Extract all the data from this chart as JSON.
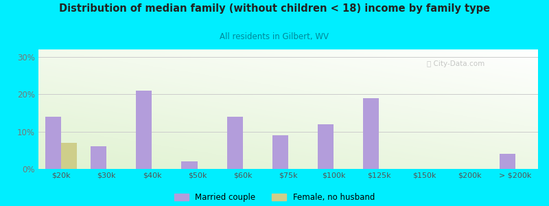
{
  "title": "Distribution of median family (without children < 18) income by family type",
  "subtitle": "All residents in Gilbert, WV",
  "categories": [
    "$20k",
    "$30k",
    "$40k",
    "$50k",
    "$60k",
    "$75k",
    "$100k",
    "$125k",
    "$150k",
    "$200k",
    "> $200k"
  ],
  "married_couple": [
    14,
    6,
    21,
    2,
    14,
    9,
    12,
    19,
    0,
    0,
    4
  ],
  "female_no_husband": [
    7,
    0,
    0,
    0,
    0,
    0,
    0,
    0,
    0,
    0,
    0
  ],
  "married_color": "#b39ddb",
  "female_color": "#cece8a",
  "background_outer": "#00eeff",
  "title_color": "#222222",
  "subtitle_color": "#008899",
  "ylabel_color": "#777777",
  "xlabel_color": "#555555",
  "ylim": [
    0,
    32
  ],
  "yticks": [
    0,
    10,
    20,
    30
  ],
  "bar_width": 0.35,
  "legend_married": "Married couple",
  "legend_female": "Female, no husband"
}
